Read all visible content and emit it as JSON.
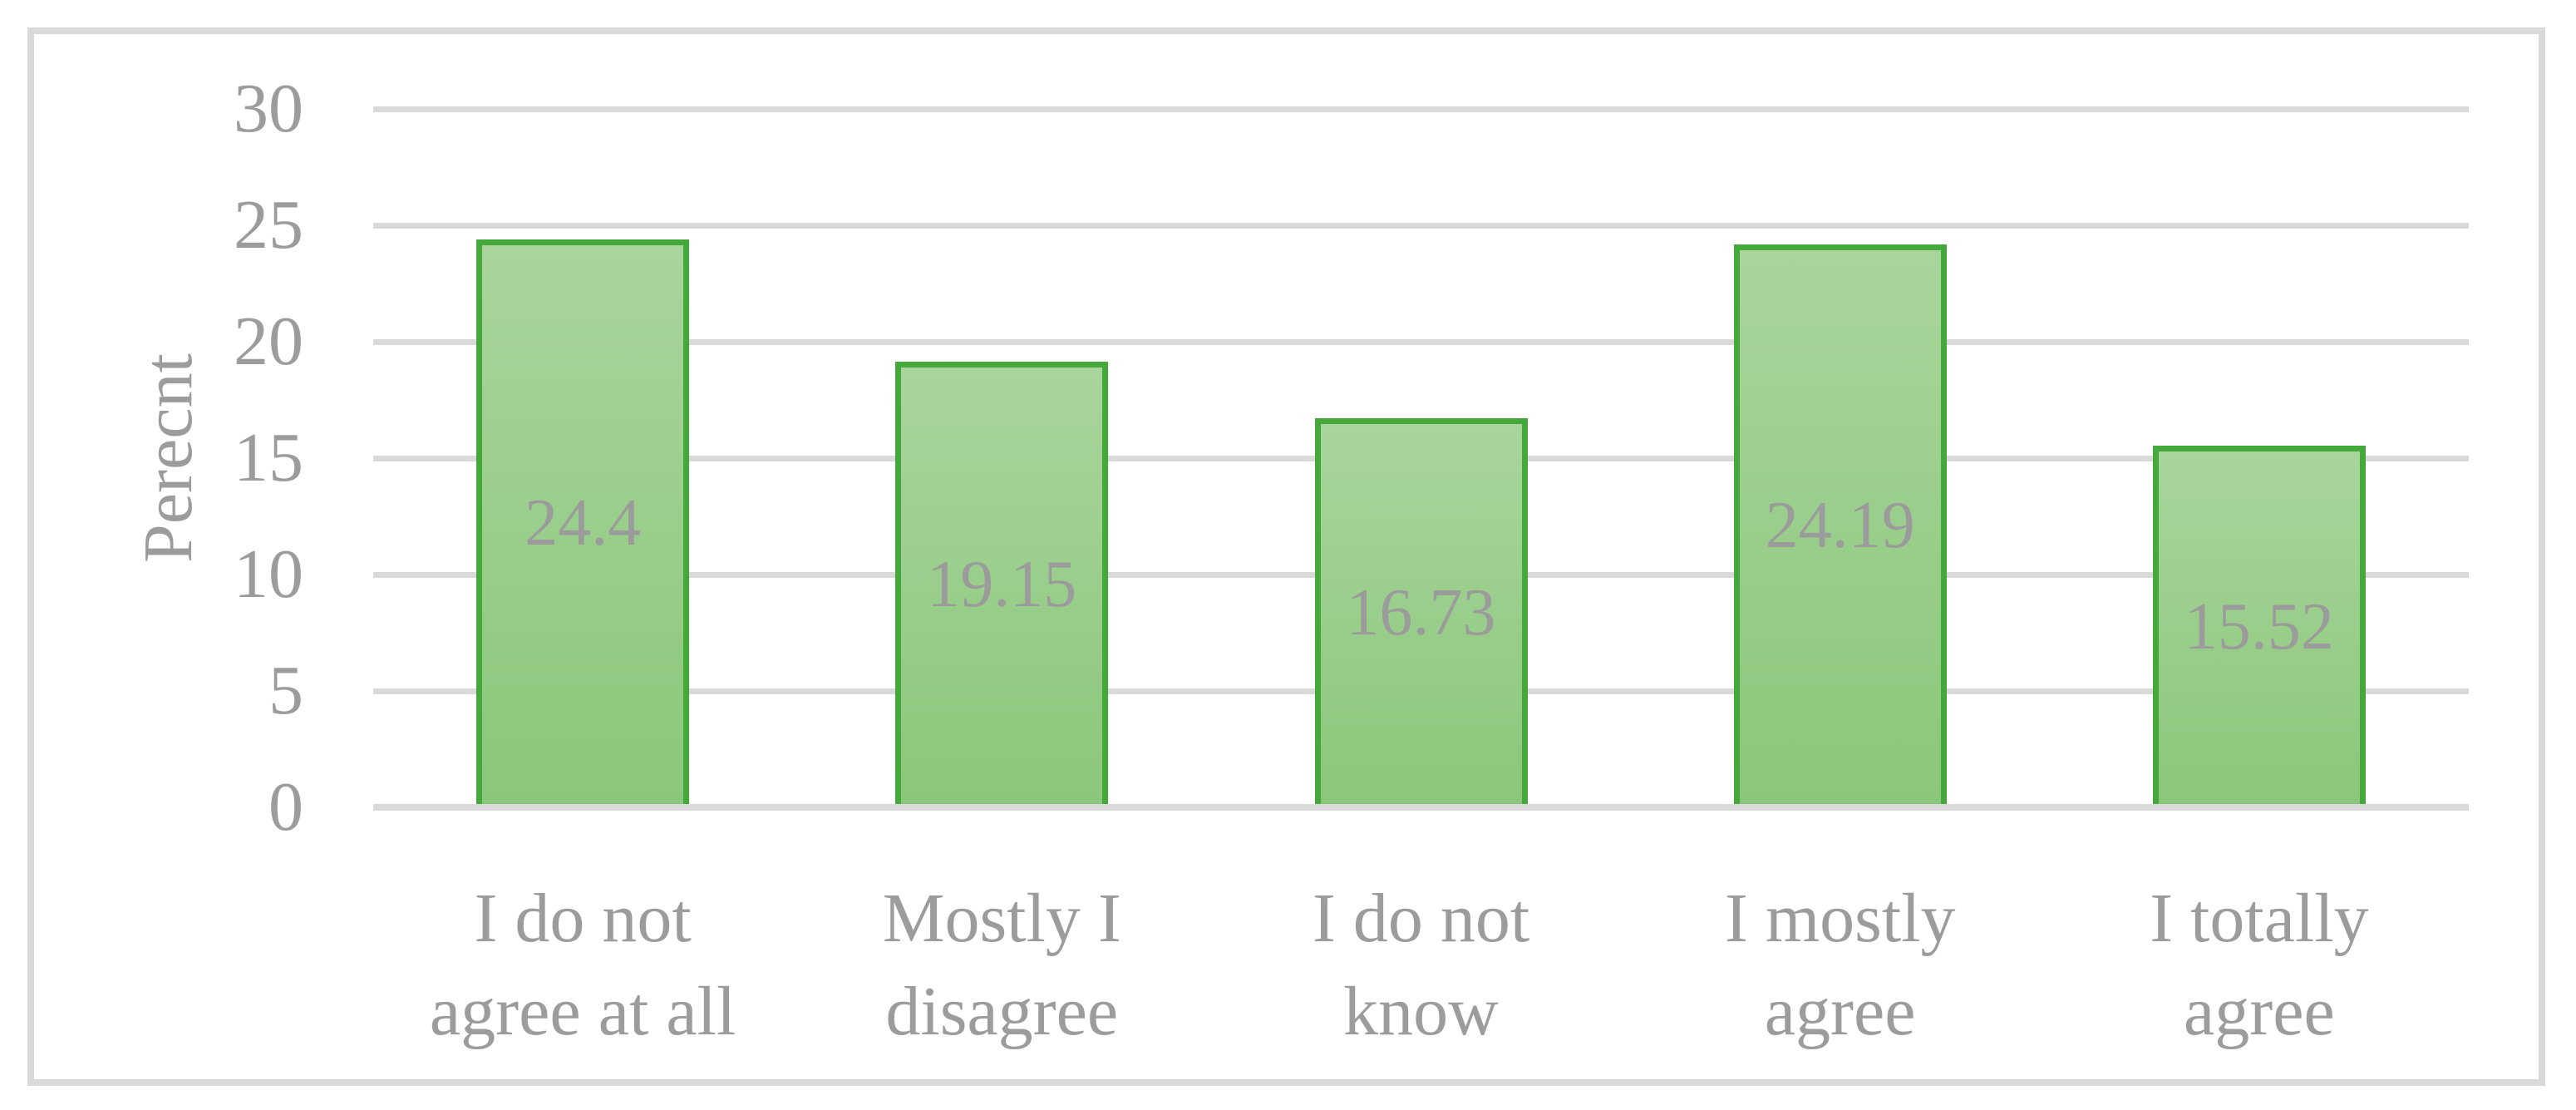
{
  "chart_data": {
    "type": "bar",
    "title": "",
    "xlabel": "",
    "ylabel": "Perecnt",
    "categories": [
      "I do not agree at all",
      "Mostly I disagree",
      "I do not know",
      "I mostly agree",
      "I totally agree"
    ],
    "category_lines": [
      [
        "I do not",
        "agree at all"
      ],
      [
        "Mostly I",
        "disagree"
      ],
      [
        "I do not",
        "know"
      ],
      [
        "I mostly",
        "agree"
      ],
      [
        "I totally",
        "agree"
      ]
    ],
    "values": [
      24.4,
      19.15,
      16.73,
      24.19,
      15.52
    ],
    "data_labels": [
      "24.4",
      "19.15",
      "16.73",
      "24.19",
      "15.52"
    ],
    "yticks": [
      0,
      5,
      10,
      15,
      20,
      25,
      30
    ],
    "ylim": [
      0,
      30
    ],
    "grid": true,
    "legend_position": "none",
    "colors": {
      "bar_fill_top": "#a9d59c",
      "bar_fill_bottom": "#8ac77a",
      "bar_border": "#44a83b",
      "gridline": "#d9d9d9",
      "frame_border": "#d9d9d9",
      "text": "#9c9c9c"
    }
  }
}
